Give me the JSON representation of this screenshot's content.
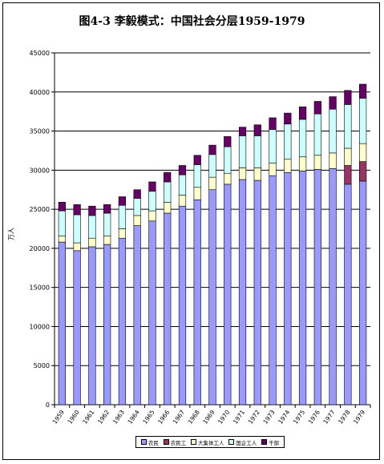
{
  "chart_data": {
    "type": "bar",
    "stacked": true,
    "title": "图4-3  李毅模式：中国社会分层1959-1979",
    "ylabel": "万人",
    "xlabel": "",
    "ylim": [
      0,
      45000
    ],
    "ytick_step": 5000,
    "yticks": [
      "0",
      "5000",
      "10000",
      "15000",
      "20000",
      "25000",
      "30000",
      "35000",
      "40000",
      "45000"
    ],
    "grid": true,
    "legend_position": "bottom",
    "categories": [
      "1959",
      "1960",
      "1961",
      "1962",
      "1963",
      "1964",
      "1965",
      "1966",
      "1967",
      "1968",
      "1969",
      "1970",
      "1971",
      "1972",
      "1973",
      "1974",
      "1975",
      "1976",
      "1977",
      "1978",
      "1979"
    ],
    "series": [
      {
        "name": "农民",
        "color": "#9999ff",
        "values": [
          20800,
          19700,
          20200,
          20500,
          21300,
          22900,
          23500,
          24500,
          25400,
          26200,
          27500,
          28200,
          28800,
          28700,
          29300,
          29700,
          29900,
          30100,
          30200,
          28200,
          28600
        ]
      },
      {
        "name": "农民工",
        "color": "#993366",
        "values": [
          0,
          0,
          0,
          0,
          0,
          0,
          0,
          0,
          0,
          0,
          0,
          0,
          0,
          0,
          0,
          0,
          0,
          0,
          0,
          2400,
          2500
        ]
      },
      {
        "name": "大集体工人",
        "color": "#ffffcc",
        "values": [
          800,
          1000,
          1100,
          1100,
          1200,
          1300,
          1300,
          1400,
          1400,
          1600,
          1600,
          1400,
          1500,
          1600,
          1600,
          1700,
          1800,
          1800,
          2000,
          2200,
          2300
        ]
      },
      {
        "name": "国企工人",
        "color": "#ccffff",
        "values": [
          3200,
          3600,
          2900,
          2900,
          3000,
          2200,
          2500,
          2600,
          2600,
          2900,
          2900,
          3400,
          4100,
          4100,
          4300,
          4500,
          4800,
          5300,
          5600,
          5600,
          5800
        ]
      },
      {
        "name": "干部",
        "color": "#660066",
        "values": [
          1100,
          1300,
          1200,
          1100,
          1100,
          1100,
          1200,
          1200,
          1200,
          1200,
          1200,
          1300,
          1100,
          1400,
          1500,
          1400,
          1600,
          1600,
          1600,
          1800,
          1800
        ]
      }
    ]
  }
}
